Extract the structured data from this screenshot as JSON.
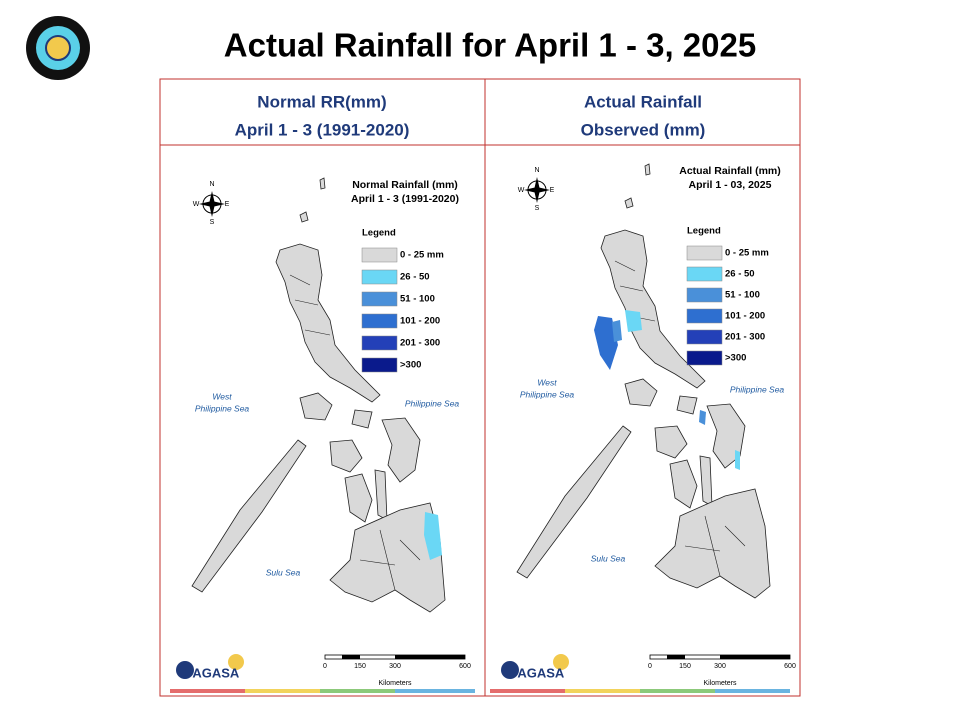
{
  "title": "Actual Rainfall for April 1 - 3, 2025",
  "panels": [
    {
      "header": [
        "Normal RR(mm)",
        "April 1 - 3 (1991-2020)"
      ],
      "map_title": [
        "Normal Rainfall (mm)",
        "April 1 - 3 (1991-2020)"
      ],
      "legend_title": "Legend",
      "legend": [
        {
          "label": "0 - 25 mm",
          "color": "#d9d9d9"
        },
        {
          "label": "26 - 50",
          "color": "#6ad7f5"
        },
        {
          "label": "51 - 100",
          "color": "#4a90d9"
        },
        {
          "label": "101 - 200",
          "color": "#2e6fd0"
        },
        {
          "label": "201 - 300",
          "color": "#2340b8"
        },
        {
          "label": ">300",
          "color": "#0a1a8c"
        }
      ],
      "seas": {
        "west": [
          "West",
          "Philippine Sea"
        ],
        "east": "Philippine Sea",
        "south": "Sulu Sea"
      },
      "compass": [
        "N",
        "E",
        "S",
        "W"
      ],
      "scale": [
        "0",
        "150",
        "300",
        "600"
      ],
      "scale_unit": "Kilometers",
      "logo": "PAGASA"
    },
    {
      "header": [
        "Actual Rainfall",
        "Observed (mm)"
      ],
      "map_title": [
        "Actual Rainfall (mm)",
        "April 1 - 03, 2025"
      ],
      "legend_title": "Legend",
      "legend": [
        {
          "label": "0 - 25 mm",
          "color": "#d9d9d9"
        },
        {
          "label": "26 - 50",
          "color": "#6ad7f5"
        },
        {
          "label": "51 - 100",
          "color": "#4a90d9"
        },
        {
          "label": "101 - 200",
          "color": "#2e6fd0"
        },
        {
          "label": "201 - 300",
          "color": "#2340b8"
        },
        {
          "label": ">300",
          "color": "#0a1a8c"
        }
      ],
      "seas": {
        "west": [
          "West",
          "Philippine Sea"
        ],
        "east": "Philippine Sea",
        "south": "Sulu Sea"
      },
      "compass": [
        "N",
        "E",
        "S",
        "W"
      ],
      "scale": [
        "0",
        "150",
        "300",
        "600"
      ],
      "scale_unit": "Kilometers",
      "logo": "PAGASA"
    }
  ]
}
